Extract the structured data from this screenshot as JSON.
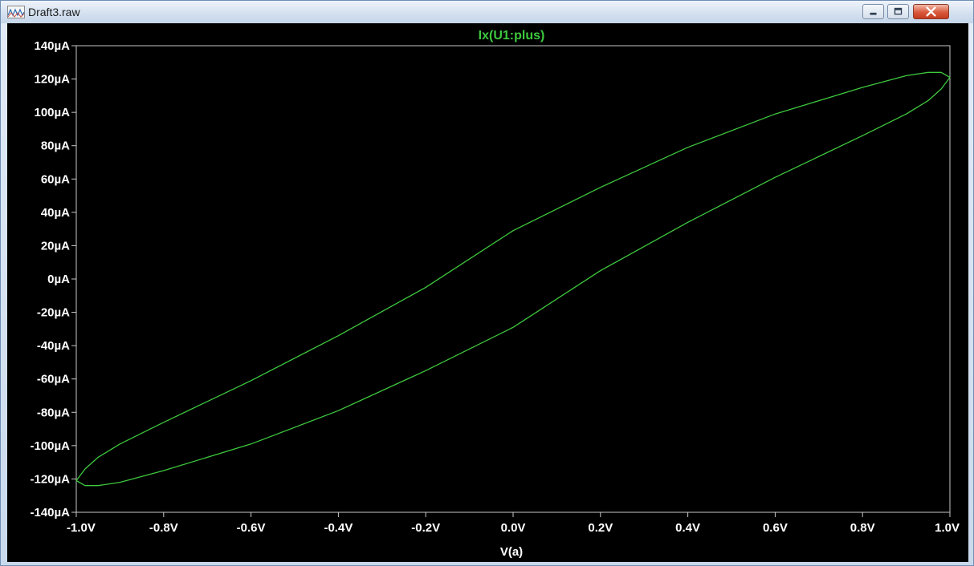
{
  "window": {
    "title": "Draft3.raw",
    "icon": "waveform-app-icon",
    "controls": {
      "minimize": "minimize-icon",
      "maximize": "maximize-icon",
      "close": "close-icon"
    }
  },
  "colors": {
    "trace": "#3ec83e",
    "title": "#3ec83e",
    "axis": "#c8c8c8",
    "tick_labels": "#ffffff",
    "background": "#000000"
  },
  "chart_data": {
    "type": "line",
    "title": "Ix(U1:plus)",
    "xlabel": "V(a)",
    "ylabel": "",
    "xlim": [
      -1.0,
      1.0
    ],
    "ylim": [
      -140,
      140
    ],
    "grid": false,
    "x_ticks": [
      -1.0,
      -0.8,
      -0.6,
      -0.4,
      -0.2,
      0.0,
      0.2,
      0.4,
      0.6,
      0.8,
      1.0
    ],
    "x_tick_labels": [
      "-1.0V",
      "-0.8V",
      "-0.6V",
      "-0.4V",
      "-0.2V",
      "0.0V",
      "0.2V",
      "0.4V",
      "0.6V",
      "0.8V",
      "1.0V"
    ],
    "y_ticks": [
      140,
      120,
      100,
      80,
      60,
      40,
      20,
      0,
      -20,
      -40,
      -60,
      -80,
      -100,
      -120,
      -140
    ],
    "y_tick_labels": [
      "140µA",
      "120µA",
      "100µA",
      "80µA",
      "60µA",
      "40µA",
      "20µA",
      "0µA",
      "-20µA",
      "-40µA",
      "-60µA",
      "-80µA",
      "-100µA",
      "-120µA",
      "-140µA"
    ],
    "series": [
      {
        "name": "Ix(U1:plus)",
        "x": [
          -1.0,
          -0.98,
          -0.95,
          -0.9,
          -0.8,
          -0.6,
          -0.4,
          -0.2,
          0.0,
          0.2,
          0.4,
          0.6,
          0.8,
          0.9,
          0.95,
          0.98,
          1.0,
          1.0,
          0.98,
          0.95,
          0.9,
          0.8,
          0.6,
          0.4,
          0.2,
          0.0,
          -0.2,
          -0.4,
          -0.6,
          -0.8,
          -0.9,
          -0.95,
          -0.98,
          -1.0
        ],
        "y": [
          -121,
          -124,
          -124,
          -122,
          -115,
          -99,
          -79,
          -55,
          -29,
          5,
          34,
          61,
          86,
          99,
          107,
          114,
          121,
          121,
          124,
          124,
          122,
          115,
          99,
          79,
          55,
          29,
          -5,
          -34,
          -61,
          -86,
          -99,
          -107,
          -114,
          -121
        ]
      }
    ]
  }
}
